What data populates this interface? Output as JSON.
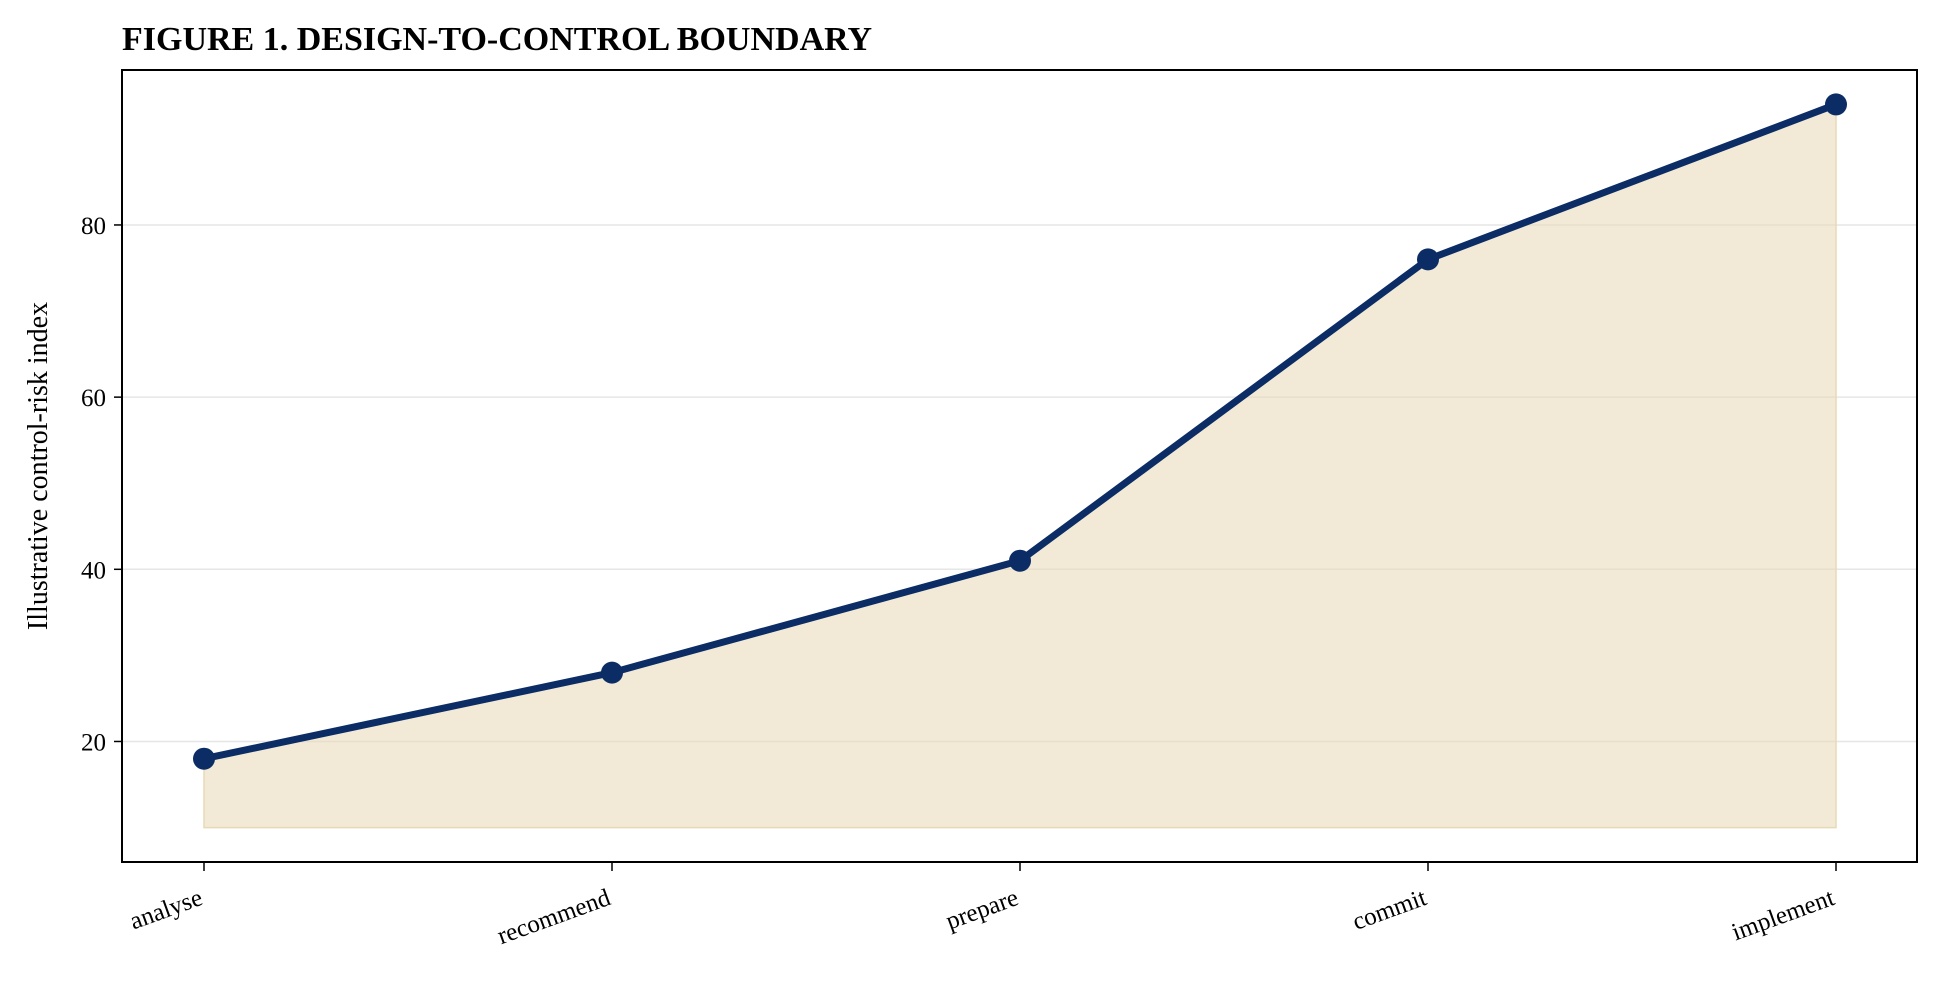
{
  "chart_data": {
    "type": "area",
    "title": "FIGURE 1. DESIGN-TO-CONTROL BOUNDARY",
    "xlabel": "",
    "ylabel": "Illustrative control-risk index",
    "categories": [
      "analyse",
      "recommend",
      "prepare",
      "commit",
      "implement"
    ],
    "values": [
      18,
      28,
      41,
      76,
      94
    ],
    "area_baseline": 10,
    "ylim": [
      6,
      98
    ],
    "yticks": [
      20,
      40,
      60,
      80
    ],
    "grid": "horizontal",
    "legend": "none",
    "x_tick_rotation": -20,
    "colors": {
      "line": "#0b2c64",
      "marker": "#0b2c64",
      "fill": "#e8d9b5",
      "grid": "#e6e6e6"
    }
  }
}
